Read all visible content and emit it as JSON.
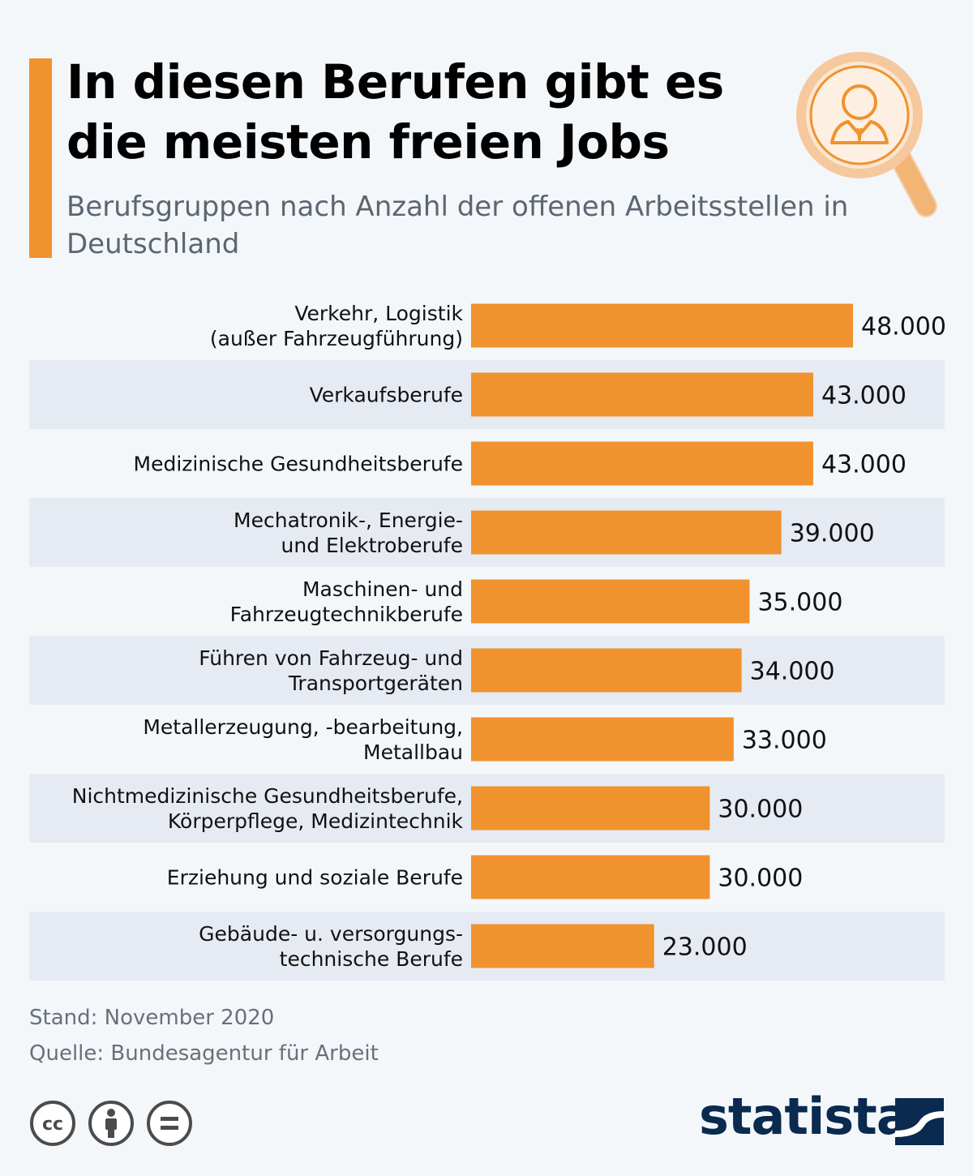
{
  "title": "In diesen Berufen gibt es die meisten freien Jobs",
  "subtitle": "Berufsgruppen nach Anzahl der offenen Arbeitsstellen in Deutschland",
  "colors": {
    "accent": "#f0922e",
    "bar": "#f0922e",
    "stripe": "#e6ebf3",
    "brand": "#0a2a4f"
  },
  "chart_data": {
    "type": "bar",
    "orientation": "horizontal",
    "categories": [
      [
        "Verkehr, Logistik",
        "(außer Fahrzeugführung)"
      ],
      [
        "Verkaufsberufe"
      ],
      [
        "Medizinische Gesundheitsberufe"
      ],
      [
        "Mechatronik-, Energie-",
        "und Elektroberufe"
      ],
      [
        "Maschinen- und",
        "Fahrzeugtechnikberufe"
      ],
      [
        "Führen von Fahrzeug- und",
        "Transportgeräten"
      ],
      [
        "Metallerzeugung, -bearbeitung,",
        "Metallbau"
      ],
      [
        "Nichtmedizinische Gesundheitsberufe,",
        "Körperpflege, Medizintechnik"
      ],
      [
        "Erziehung und soziale Berufe"
      ],
      [
        "Gebäude- u. versorgungs-",
        "technische Berufe"
      ]
    ],
    "values": [
      48000,
      43000,
      43000,
      39000,
      35000,
      34000,
      33000,
      30000,
      30000,
      23000
    ],
    "value_labels": [
      "48.000",
      "43.000",
      "43.000",
      "39.000",
      "35.000",
      "34.000",
      "33.000",
      "30.000",
      "30.000",
      "23.000"
    ],
    "xlim": [
      0,
      48000
    ],
    "xlabel": "",
    "ylabel": "",
    "grid": false,
    "legend": "none"
  },
  "footer": {
    "stand": "Stand: November 2020",
    "quelle": "Quelle: Bundesagentur für Arbeit"
  },
  "icons": {
    "magnifier": "magnifier-person-icon",
    "license": [
      "cc-icon",
      "by-attribution-icon",
      "no-derivatives-icon"
    ],
    "brand_logo": "statista-logo-icon"
  },
  "brand": "statista"
}
